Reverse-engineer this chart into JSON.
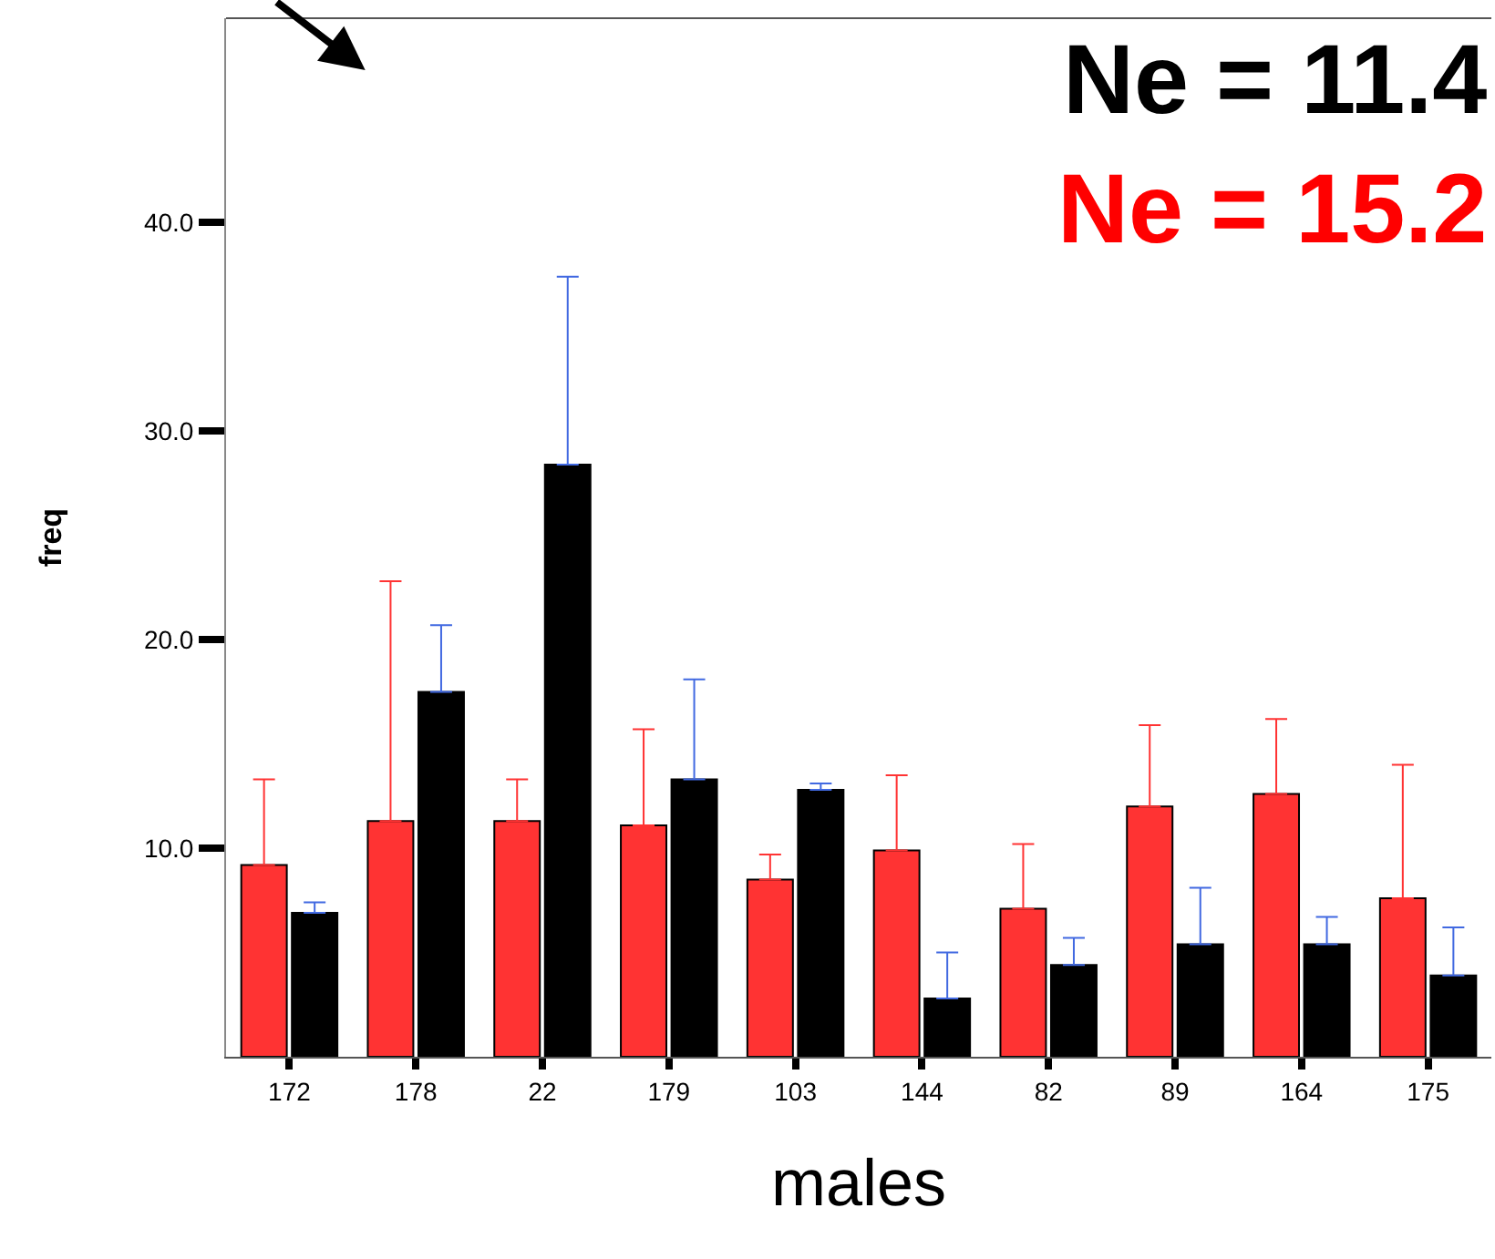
{
  "chart_data": {
    "type": "bar",
    "xlabel": "males",
    "ylabel": "freq",
    "categories": [
      "172",
      "178",
      "22",
      "179",
      "103",
      "144",
      "82",
      "89",
      "164",
      "175"
    ],
    "series": [
      {
        "color": "#ff3333",
        "values": [
          9.2,
          11.3,
          11.3,
          11.1,
          8.5,
          9.9,
          7.1,
          12.0,
          12.6,
          7.6
        ],
        "errors": [
          [
            9.2,
            13.3
          ],
          [
            11.3,
            22.8
          ],
          [
            11.3,
            13.3
          ],
          [
            11.1,
            15.7
          ],
          [
            8.5,
            9.7
          ],
          [
            9.9,
            13.5
          ],
          [
            7.1,
            10.2
          ],
          [
            12.0,
            15.9
          ],
          [
            12.6,
            16.2
          ],
          [
            7.6,
            14.0
          ]
        ]
      },
      {
        "color": "#000000",
        "values": [
          6.9,
          17.5,
          28.4,
          13.3,
          12.8,
          2.8,
          4.4,
          5.4,
          5.4,
          3.9
        ],
        "errors": [
          [
            6.9,
            7.4
          ],
          [
            17.5,
            20.7
          ],
          [
            28.4,
            37.4
          ],
          [
            13.3,
            18.1
          ],
          [
            12.8,
            13.1
          ],
          [
            2.8,
            5.0
          ],
          [
            4.4,
            5.7
          ],
          [
            5.4,
            8.1
          ],
          [
            5.4,
            6.7
          ],
          [
            3.9,
            6.2
          ]
        ]
      }
    ],
    "ylim": [
      0,
      49.8
    ],
    "yticks": [
      {
        "value": 10,
        "label": "10.0"
      },
      {
        "value": 20,
        "label": "20.0"
      },
      {
        "value": 30,
        "label": "30.0"
      },
      {
        "value": 40,
        "label": "40.0"
      }
    ],
    "annotations": [
      "Ne = 11.4",
      "Ne = 15.2"
    ]
  }
}
